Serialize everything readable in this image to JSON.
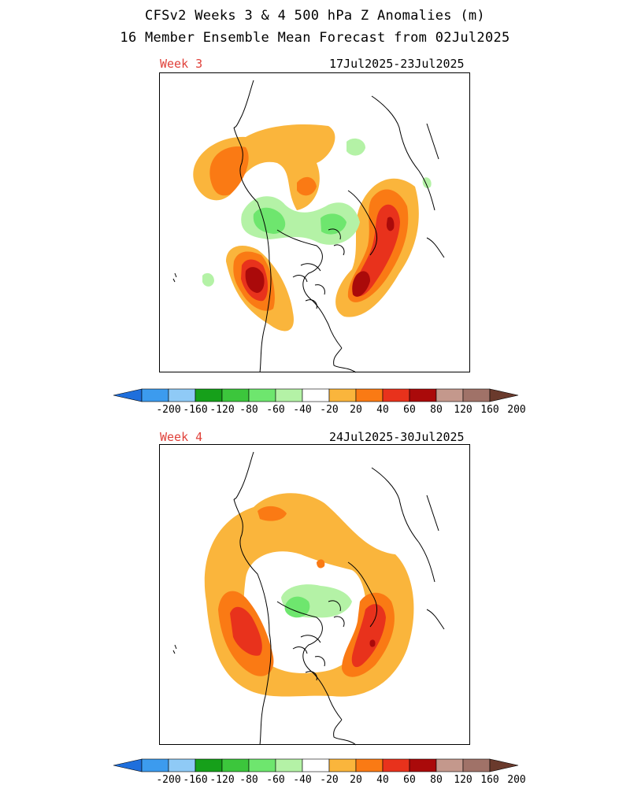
{
  "title_line1": "CFSv2 Weeks 3 & 4 500 hPa Z Anomalies (m)",
  "title_line2": "16 Member Ensemble Mean Forecast from 02Jul2025",
  "panels": [
    {
      "label": "Week 3",
      "dates": "17Jul2025-23Jul2025"
    },
    {
      "label": "Week 4",
      "dates": "24Jul2025-30Jul2025"
    }
  ],
  "colorbar": {
    "labels": [
      "-200",
      "-160",
      "-120",
      "-80",
      "-60",
      "-40",
      "-20",
      "20",
      "40",
      "60",
      "80",
      "120",
      "160",
      "200"
    ],
    "colors": [
      "#1f6fdc",
      "#3c9bee",
      "#8fcaf6",
      "#16a01a",
      "#3cc63c",
      "#6ee66e",
      "#b4f2a6",
      "#ffffff",
      "#fab53c",
      "#fa7a14",
      "#e8321c",
      "#aa0a0a",
      "#c4988c",
      "#a07268",
      "#6a3a2c"
    ]
  },
  "anomaly_colors": {
    "pos20": "#fab53c",
    "pos40": "#fa7a14",
    "pos60": "#e8321c",
    "pos80": "#aa0a0a",
    "neg20": "#b4f2a6",
    "neg40": "#6ee66e"
  }
}
